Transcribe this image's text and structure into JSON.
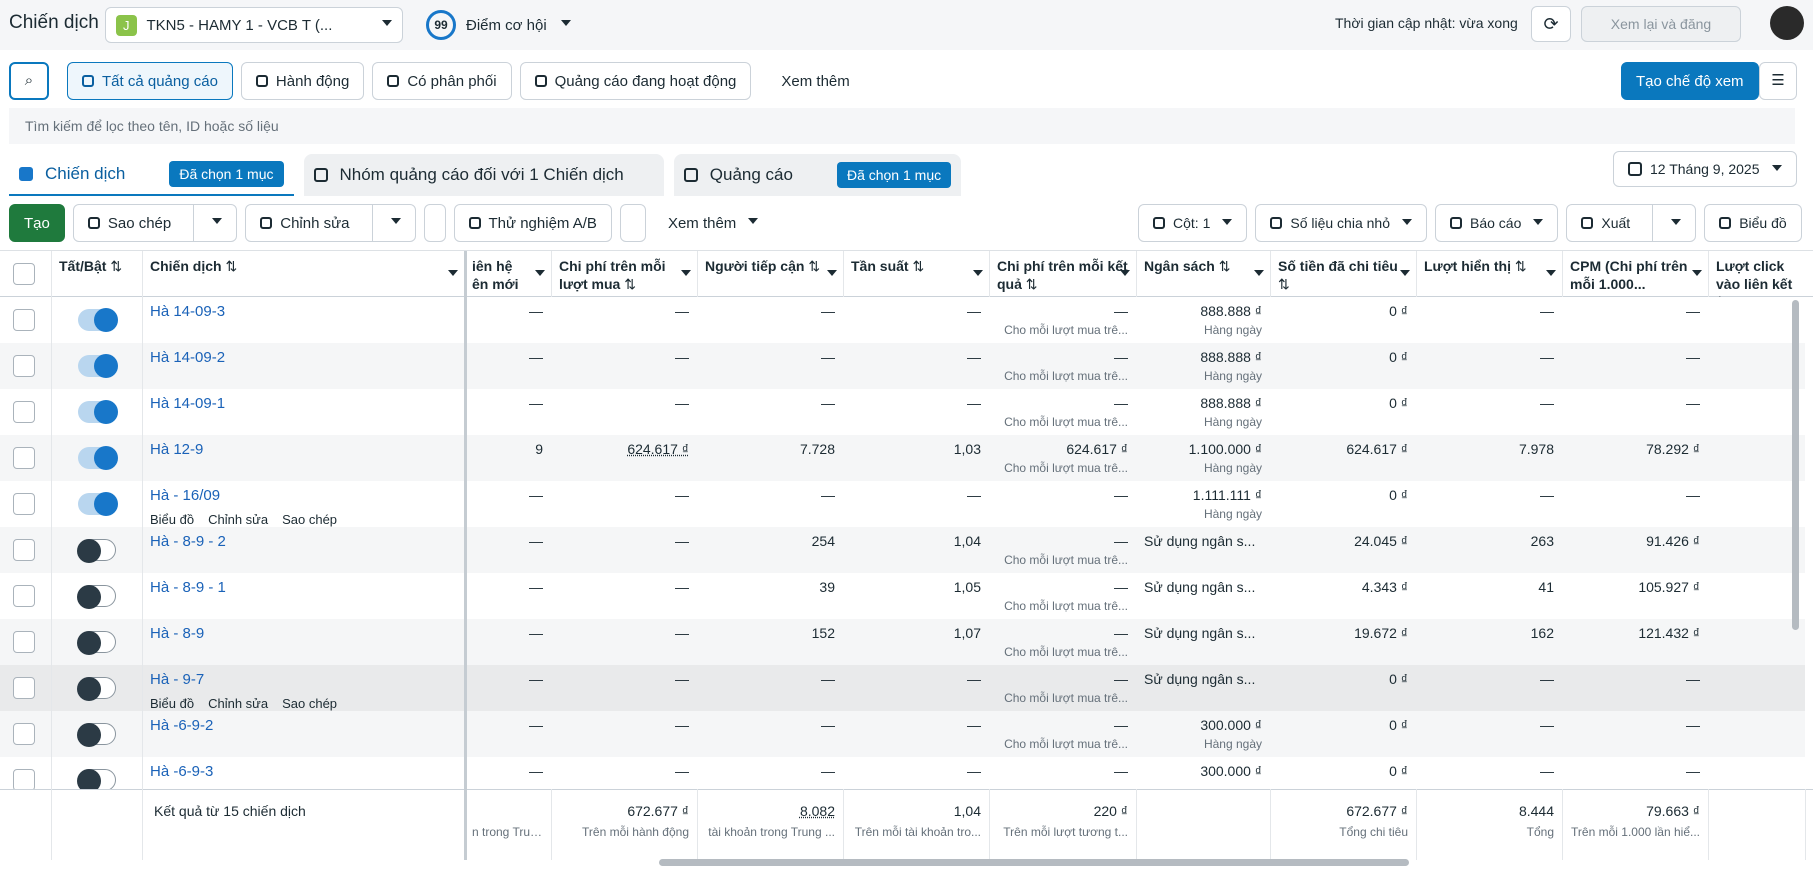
{
  "header": {
    "title": "Chiến dịch",
    "account_initial": "J",
    "account": "TKN5 - HAMY 1 - VCB T (...",
    "score": "99",
    "score_label": "Điểm cơ hội",
    "update_status": "Thời gian cập nhật: vừa xong",
    "review_button": "Xem lại và đăng"
  },
  "filters": {
    "items": [
      "Tất cả quảng cáo",
      "Hành động",
      "Có phân phối",
      "Quảng cáo đang hoạt động",
      "Xem thêm"
    ],
    "create_view": "Tạo chế độ xem",
    "search_placeholder": "Tìm kiếm để lọc theo tên, ID hoặc số liệu"
  },
  "tabs": {
    "items": [
      {
        "label": "Chiến dịch",
        "badge": "Đã chọn 1 mục"
      },
      {
        "label": "Nhóm quảng cáo đối với 1 Chiến dịch"
      },
      {
        "label": "Quảng cáo",
        "badge": "Đã chọn 1 mục"
      }
    ],
    "date": "12 Tháng 9, 2025"
  },
  "actions": {
    "left": [
      "Tạo",
      "Sao chép",
      "Chỉnh sửa",
      "Thử nghiệm A/B",
      "Xem thêm"
    ],
    "right": [
      "Cột: 1",
      "Số liệu chia nhỏ",
      "Báo cáo",
      "Xuất",
      "Biểu đồ"
    ]
  },
  "table": {
    "columns": [
      {
        "label": "Tất/Bật",
        "sort": true
      },
      {
        "label": "Chiến dịch",
        "sort": true
      },
      {
        "label": "iên hệ\nên mới",
        "sort": false
      },
      {
        "label": "Chi phí trên mỗi lượt mua",
        "sort": true
      },
      {
        "label": "Người tiếp cận",
        "sort": true
      },
      {
        "label": "Tần suất",
        "sort": true
      },
      {
        "label": "Chi phí trên mỗi kết quả",
        "sort": true
      },
      {
        "label": "Ngân sách",
        "sort": true
      },
      {
        "label": "Số tiền đã chi tiêu",
        "sort": true
      },
      {
        "label": "Lượt hiển thị",
        "sort": true
      },
      {
        "label": "CPM (Chi phí trên mỗi 1.000...",
        "sort": false
      },
      {
        "label": "Lượt click vào liên kết",
        "sort": true
      }
    ],
    "row_actions": [
      "Biểu đồ",
      "Chỉnh sửa",
      "Sao chép"
    ],
    "rows": [
      {
        "name": "Hà 14-09-3",
        "on": true,
        "cells": [
          "—",
          "—",
          "—",
          "—",
          {
            "value": "—",
            "note": "Cho mỗi lượt mua trê..."
          },
          {
            "value": "888.888 ₫",
            "note": "Hàng ngày"
          },
          "0 ₫",
          "—",
          "—"
        ]
      },
      {
        "name": "Hà 14-09-2",
        "on": true,
        "cells": [
          "—",
          "—",
          "—",
          "—",
          {
            "value": "—",
            "note": "Cho mỗi lượt mua trê..."
          },
          {
            "value": "888.888 ₫",
            "note": "Hàng ngày"
          },
          "0 ₫",
          "—",
          "—"
        ]
      },
      {
        "name": "Hà 14-09-1",
        "on": true,
        "cells": [
          "—",
          "—",
          "—",
          "—",
          {
            "value": "—",
            "note": "Cho mỗi lượt mua trê..."
          },
          {
            "value": "888.888 ₫",
            "note": "Hàng ngày"
          },
          "0 ₫",
          "—",
          "—"
        ]
      },
      {
        "name": "Hà 12-9",
        "on": true,
        "cells": [
          "9",
          "624.617 ₫",
          "7.728",
          "1,03",
          {
            "value": "624.617 ₫",
            "note": "Cho mỗi lượt mua trê..."
          },
          {
            "value": "1.100.000 ₫",
            "note": "Hàng ngày"
          },
          "624.617 ₫",
          "7.978",
          "78.292 ₫"
        ]
      },
      {
        "name": "Hà - 16/09",
        "on": true,
        "actions": true,
        "cells": [
          "—",
          "—",
          "—",
          "—",
          "—",
          {
            "value": "1.111.111 ₫",
            "note": "Hàng ngày"
          },
          "0 ₫",
          "—",
          "—"
        ]
      },
      {
        "name": "Hà - 8-9 - 2",
        "on": false,
        "cells": [
          "—",
          "—",
          "254",
          "1,04",
          {
            "value": "—",
            "note": "Cho mỗi lượt mua trê..."
          },
          "Sử dụng ngân s...",
          "24.045 ₫",
          "263",
          "91.426 ₫"
        ]
      },
      {
        "name": "Hà - 8-9 - 1",
        "on": false,
        "cells": [
          "—",
          "—",
          "39",
          "1,05",
          {
            "value": "—",
            "note": "Cho mỗi lượt mua trê..."
          },
          "Sử dụng ngân s...",
          "4.343 ₫",
          "41",
          "105.927 ₫"
        ]
      },
      {
        "name": "Hà - 8-9",
        "on": false,
        "cells": [
          "—",
          "—",
          "152",
          "1,07",
          {
            "value": "—",
            "note": "Cho mỗi lượt mua trê..."
          },
          "Sử dụng ngân s...",
          "19.672 ₫",
          "162",
          "121.432 ₫"
        ]
      },
      {
        "name": "Hà - 9-7",
        "on": false,
        "actions": true,
        "highlighted": true,
        "cells": [
          "—",
          "—",
          "—",
          "—",
          {
            "value": "—",
            "note": "Cho mỗi lượt mua trê..."
          },
          "Sử dụng ngân s...",
          "0 ₫",
          "—",
          "—"
        ]
      },
      {
        "name": "Hà -6-9-2",
        "on": false,
        "cells": [
          "—",
          "—",
          "—",
          "—",
          {
            "value": "—",
            "note": "Cho mỗi lượt mua trê..."
          },
          {
            "value": "300.000 ₫",
            "note": "Hàng ngày"
          },
          "0 ₫",
          "—",
          "—"
        ]
      },
      {
        "name": "Hà -6-9-3",
        "on": false,
        "cells": [
          "—",
          "—",
          "—",
          "—",
          "—",
          "300.000 ₫",
          "0 ₫",
          "—",
          "—"
        ]
      }
    ],
    "footer": {
      "label": "Kết quả từ 15 chiến dịch",
      "cells": [
        {
          "note": "n trong Trung tâ"
        },
        {
          "value": "672.677 ₫",
          "note": "Trên mỗi hành động"
        },
        {
          "value": "8.082",
          "note": "tài khoản trong Trung ..."
        },
        {
          "value": "1,04",
          "note": "Trên mỗi tài khoản tro..."
        },
        {
          "value": "220 ₫",
          "note": "Trên mỗi lượt tương t..."
        },
        null,
        {
          "value": "672.677 ₫",
          "note": "Tổng chi tiêu"
        },
        {
          "value": "8.444",
          "note": "Tổng"
        },
        {
          "value": "79.663 ₫",
          "note": "Trên mỗi 1.000 lần hiể..."
        }
      ]
    }
  }
}
